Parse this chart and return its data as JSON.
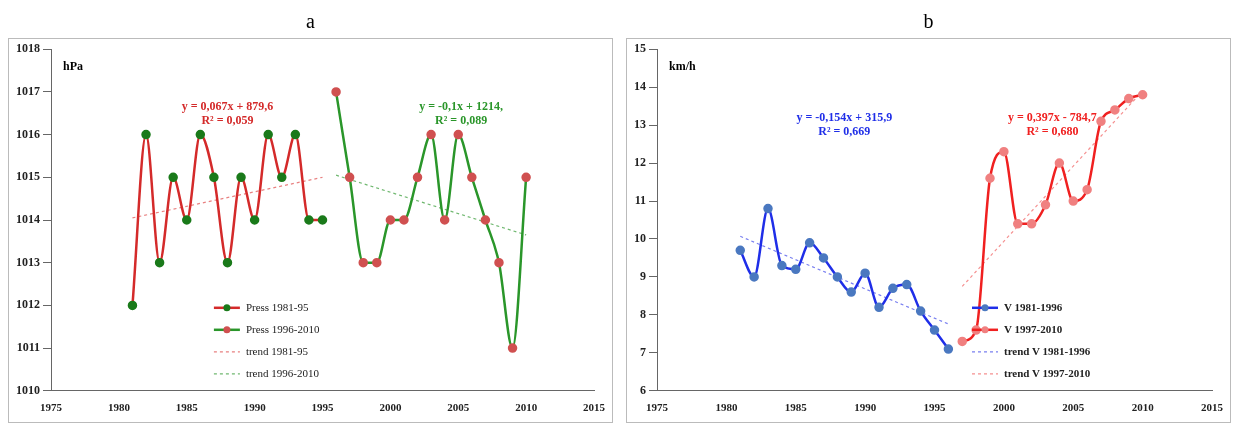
{
  "chart_data": [
    {
      "type": "line",
      "title": "a",
      "ylabel": "hPa",
      "xlim": [
        1975,
        2015
      ],
      "xticks": [
        1975,
        1980,
        1985,
        1990,
        1995,
        2000,
        2005,
        2010,
        2015
      ],
      "ylim": [
        1010,
        1018
      ],
      "yticks": [
        1010,
        1011,
        1012,
        1013,
        1014,
        1015,
        1016,
        1017,
        1018
      ],
      "grid": false,
      "legend": "bottom",
      "marker": "circle",
      "series": [
        {
          "name": "Press 1981-95",
          "color": "#d42a2a",
          "colors": [
            "#1a7a1a",
            "#1a7a1a",
            "#1a7a1a",
            "#1a7a1a",
            "#1a7a1a",
            "#1a7a1a",
            "#1a7a1a",
            "#1a7a1a",
            "#1a7a1a",
            "#1a7a1a",
            "#1a7a1a",
            "#1a7a1a",
            "#1a7a1a",
            "#1a7a1a",
            "#1a7a1a"
          ],
          "x": [
            1981,
            1982,
            1983,
            1984,
            1985,
            1986,
            1987,
            1988,
            1989,
            1990,
            1991,
            1992,
            1993,
            1994,
            1995
          ],
          "values": [
            1012,
            1016,
            1013,
            1015,
            1014,
            1016,
            1015,
            1013,
            1015,
            1014,
            1016,
            1015,
            1016,
            1014,
            1014
          ]
        },
        {
          "name": "Press 1996-2010",
          "color": "#2a962a",
          "colors": [
            "#d05050",
            "#d05050",
            "#d05050",
            "#d05050",
            "#d05050",
            "#d05050",
            "#d05050",
            "#d05050",
            "#d05050",
            "#d05050",
            "#d05050",
            "#d05050",
            "#d05050",
            "#d05050",
            "#d05050"
          ],
          "x": [
            1996,
            1997,
            1998,
            1999,
            2000,
            2001,
            2002,
            2003,
            2004,
            2005,
            2006,
            2007,
            2008,
            2009,
            2010
          ],
          "values": [
            1017,
            1015,
            1013,
            1013,
            1014,
            1014,
            1015,
            1016,
            1014,
            1016,
            1015,
            1014,
            1013,
            1011,
            1015
          ]
        },
        {
          "name": "trend 1981-95",
          "color": "#e88080",
          "line_style": "dashed",
          "marker": "none",
          "x": [
            1981,
            1995
          ],
          "values": [
            1014.05,
            1015.0
          ]
        },
        {
          "name": "trend 1996-2010",
          "color": "#70b870",
          "line_style": "dashed",
          "marker": "none",
          "x": [
            1996,
            2010
          ],
          "values": [
            1015.05,
            1013.65
          ]
        }
      ],
      "annotations": [
        "y = 0,067x + 879,6\nR² = 0,059",
        "y = -0,1x + 1214,\nR² = 0,089"
      ]
    },
    {
      "type": "line",
      "title": "b",
      "ylabel": "km/h",
      "xlim": [
        1975,
        2015
      ],
      "xticks": [
        1975,
        1980,
        1985,
        1990,
        1995,
        2000,
        2005,
        2010,
        2015
      ],
      "ylim": [
        6,
        15
      ],
      "yticks": [
        6,
        7,
        8,
        9,
        10,
        11,
        12,
        13,
        14,
        15
      ],
      "grid": false,
      "legend": "bottom right",
      "marker": "circle",
      "series": [
        {
          "name": "V 1981-1996",
          "color": "#1f2ee8",
          "colors": [
            "#4a78c0",
            "#4a78c0",
            "#4a78c0",
            "#4a78c0",
            "#4a78c0",
            "#4a78c0",
            "#4a78c0",
            "#4a78c0",
            "#4a78c0",
            "#4a78c0",
            "#4a78c0",
            "#4a78c0",
            "#4a78c0",
            "#4a78c0",
            "#4a78c0",
            "#4a78c0"
          ],
          "x": [
            1981,
            1982,
            1983,
            1984,
            1985,
            1986,
            1987,
            1988,
            1989,
            1990,
            1991,
            1992,
            1993,
            1994,
            1995,
            1996
          ],
          "values": [
            9.7,
            9.0,
            10.8,
            9.3,
            9.2,
            9.9,
            9.5,
            9.0,
            8.6,
            9.1,
            8.2,
            8.7,
            8.8,
            8.1,
            7.6,
            7.1
          ]
        },
        {
          "name": "V 1997-2010",
          "color": "#f02020",
          "colors": [
            "#f08080",
            "#f08080",
            "#f08080",
            "#f08080",
            "#f08080",
            "#f08080",
            "#f08080",
            "#f08080",
            "#f08080",
            "#f08080",
            "#f08080",
            "#f08080",
            "#f08080",
            "#f08080"
          ],
          "x": [
            1997,
            1998,
            1999,
            2000,
            2001,
            2002,
            2003,
            2004,
            2005,
            2006,
            2007,
            2008,
            2009,
            2010
          ],
          "values": [
            7.3,
            7.6,
            11.6,
            12.3,
            10.4,
            10.4,
            10.9,
            12.0,
            11.0,
            11.3,
            13.1,
            13.4,
            13.7,
            13.8
          ]
        },
        {
          "name": "trend V 1981-1996",
          "color": "#7a80f0",
          "line_style": "dashed",
          "marker": "none",
          "x": [
            1981,
            1996
          ],
          "values": [
            10.07,
            7.76
          ]
        },
        {
          "name": "trend V 1997-2010",
          "color": "#f59090",
          "line_style": "dashed",
          "marker": "none",
          "x": [
            1997,
            2010
          ],
          "values": [
            8.75,
            13.9
          ]
        }
      ],
      "annotations": [
        "y = -0,154x + 315,9\nR² = 0,669",
        "y = 0,397x - 784,7\nR² = 0,680"
      ]
    }
  ]
}
